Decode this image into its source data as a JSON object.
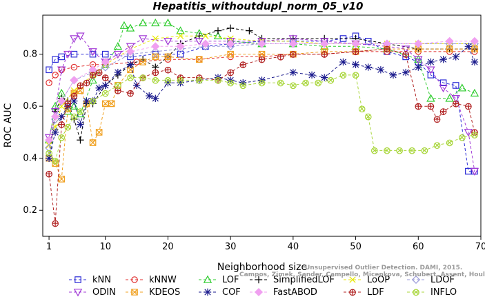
{
  "chart_data": {
    "type": "line",
    "title": "Hepatitis_withoutdupl_norm_05_v10",
    "xlabel": "Neighborhood size",
    "ylabel": "ROC AUC",
    "xlim": [
      0,
      70
    ],
    "ylim": [
      0.1,
      0.95
    ],
    "xticks": [
      1,
      10,
      20,
      30,
      40,
      50,
      60,
      70
    ],
    "yticks": [
      0.2,
      0.4,
      0.6,
      0.8
    ],
    "xtick_labels": [
      "1",
      "10",
      "20",
      "30",
      "40",
      "50",
      "60",
      "70"
    ],
    "ytick_labels": [
      "0.2",
      "0.4",
      "0.6",
      "0.8"
    ],
    "grid": false,
    "legend_position": "bottom",
    "watermark_lines": [
      "Unsupervised Outlier Detection. DAMI, 2015.",
      "Campos, Zimek, Sander, Campello, Micenkova, Schubert, Assent, Houle"
    ],
    "series": [
      {
        "name": "kNN",
        "color": "#2b2bd6",
        "marker": "square",
        "x": [
          1,
          2,
          3,
          5,
          8,
          10,
          14,
          18,
          22,
          26,
          30,
          35,
          40,
          45,
          48,
          50,
          52,
          55,
          58,
          60,
          62,
          64,
          66,
          68,
          69
        ],
        "y": [
          0.74,
          0.78,
          0.79,
          0.8,
          0.8,
          0.8,
          0.79,
          0.8,
          0.8,
          0.83,
          0.84,
          0.85,
          0.85,
          0.85,
          0.86,
          0.87,
          0.85,
          0.81,
          0.79,
          0.77,
          0.72,
          0.69,
          0.68,
          0.35,
          0.35
        ]
      },
      {
        "name": "kNNW",
        "color": "#e03030",
        "marker": "circle",
        "x": [
          1,
          2,
          3,
          5,
          8,
          10,
          15,
          20,
          25,
          30,
          35,
          40,
          45,
          50,
          55,
          60,
          65,
          69
        ],
        "y": [
          0.69,
          0.72,
          0.74,
          0.75,
          0.76,
          0.76,
          0.77,
          0.78,
          0.78,
          0.79,
          0.79,
          0.8,
          0.8,
          0.81,
          0.81,
          0.81,
          0.81,
          0.81
        ]
      },
      {
        "name": "LOF",
        "color": "#2ecc2e",
        "marker": "triangle-up",
        "x": [
          1,
          2,
          3,
          4,
          5,
          6,
          8,
          10,
          12,
          13,
          14,
          16,
          18,
          20,
          22,
          25,
          28,
          30,
          35,
          40,
          45,
          50,
          55,
          60,
          62,
          65,
          67,
          69
        ],
        "y": [
          0.47,
          0.6,
          0.65,
          0.58,
          0.6,
          0.57,
          0.7,
          0.76,
          0.83,
          0.91,
          0.9,
          0.92,
          0.92,
          0.92,
          0.89,
          0.88,
          0.87,
          0.85,
          0.84,
          0.84,
          0.83,
          0.83,
          0.82,
          0.78,
          0.63,
          0.63,
          0.67,
          0.65
        ]
      },
      {
        "name": "SimplifiedLOF",
        "color": "#000000",
        "marker": "plus",
        "x": [
          1,
          2,
          3,
          4,
          5,
          6,
          7,
          8,
          10,
          12,
          14,
          16,
          18,
          20,
          22,
          25,
          28,
          30,
          33,
          35,
          40,
          45,
          50,
          55,
          60,
          65,
          69
        ],
        "y": [
          0.4,
          0.58,
          0.63,
          0.62,
          0.55,
          0.47,
          0.61,
          0.61,
          0.68,
          0.72,
          0.76,
          0.78,
          0.75,
          0.79,
          0.84,
          0.87,
          0.89,
          0.9,
          0.89,
          0.86,
          0.86,
          0.86,
          0.86,
          0.84,
          0.82,
          0.82,
          0.82
        ]
      },
      {
        "name": "LoOP",
        "color": "#e8e800",
        "marker": "x",
        "x": [
          1,
          2,
          3,
          5,
          8,
          10,
          14,
          18,
          22,
          26,
          30,
          35,
          40,
          45,
          50,
          55,
          60,
          65,
          69
        ],
        "y": [
          0.45,
          0.52,
          0.6,
          0.66,
          0.72,
          0.76,
          0.82,
          0.86,
          0.87,
          0.87,
          0.86,
          0.85,
          0.85,
          0.84,
          0.84,
          0.84,
          0.84,
          0.84,
          0.84
        ]
      },
      {
        "name": "LDOF",
        "color": "#9a9ad8",
        "marker": "diamond",
        "x": [
          1,
          2,
          3,
          5,
          8,
          10,
          14,
          18,
          22,
          26,
          30,
          35,
          40,
          45,
          50,
          55,
          60,
          65,
          69
        ],
        "y": [
          0.44,
          0.55,
          0.62,
          0.7,
          0.73,
          0.75,
          0.8,
          0.81,
          0.82,
          0.83,
          0.83,
          0.84,
          0.84,
          0.84,
          0.84,
          0.84,
          0.84,
          0.84,
          0.84
        ]
      },
      {
        "name": "ODIN",
        "color": "#a23ad6",
        "marker": "triangle-down",
        "x": [
          1,
          2,
          3,
          4,
          5,
          6,
          8,
          10,
          12,
          14,
          16,
          20,
          25,
          30,
          35,
          40,
          45,
          50,
          55,
          58,
          60,
          62,
          64,
          66,
          68,
          69
        ],
        "y": [
          0.48,
          0.58,
          0.74,
          0.8,
          0.86,
          0.87,
          0.81,
          0.77,
          0.8,
          0.83,
          0.86,
          0.85,
          0.85,
          0.85,
          0.85,
          0.86,
          0.85,
          0.84,
          0.83,
          0.82,
          0.78,
          0.74,
          0.67,
          0.63,
          0.5,
          0.35
        ]
      },
      {
        "name": "KDEOS",
        "color": "#f0a020",
        "marker": "box-x",
        "x": [
          1,
          2,
          3,
          4,
          5,
          6,
          7,
          8,
          9,
          10,
          11,
          12,
          14,
          16,
          18,
          20,
          25,
          30,
          35,
          40,
          45,
          50,
          55,
          60,
          65,
          69
        ],
        "y": [
          0.4,
          0.38,
          0.32,
          0.59,
          0.65,
          0.66,
          0.61,
          0.46,
          0.5,
          0.61,
          0.61,
          0.68,
          0.74,
          0.77,
          0.79,
          0.79,
          0.78,
          0.8,
          0.8,
          0.8,
          0.81,
          0.81,
          0.82,
          0.82,
          0.82,
          0.82
        ]
      },
      {
        "name": "COF",
        "color": "#1a1a8c",
        "marker": "asterisk",
        "x": [
          1,
          2,
          3,
          4,
          5,
          6,
          7,
          8,
          9,
          10,
          12,
          14,
          15,
          17,
          18,
          20,
          22,
          25,
          28,
          30,
          32,
          35,
          40,
          43,
          45,
          48,
          50,
          52,
          54,
          56,
          58,
          60,
          62,
          64,
          66,
          68,
          69
        ],
        "y": [
          0.4,
          0.5,
          0.56,
          0.6,
          0.62,
          0.53,
          0.62,
          0.62,
          0.67,
          0.68,
          0.73,
          0.76,
          0.68,
          0.64,
          0.63,
          0.69,
          0.69,
          0.7,
          0.71,
          0.7,
          0.69,
          0.7,
          0.73,
          0.72,
          0.71,
          0.77,
          0.76,
          0.75,
          0.74,
          0.72,
          0.73,
          0.75,
          0.77,
          0.78,
          0.79,
          0.83,
          0.77
        ]
      },
      {
        "name": "FastABOD",
        "color": "#f0a0f0",
        "marker": "diamond-filled",
        "x": [
          1,
          2,
          3,
          5,
          8,
          10,
          14,
          18,
          22,
          26,
          30,
          35,
          40,
          45,
          50,
          55,
          60,
          65,
          69
        ],
        "y": [
          0.47,
          0.56,
          0.62,
          0.7,
          0.74,
          0.77,
          0.81,
          0.83,
          0.83,
          0.84,
          0.84,
          0.84,
          0.84,
          0.84,
          0.84,
          0.84,
          0.84,
          0.85,
          0.85
        ]
      },
      {
        "name": "LDF",
        "color": "#b02020",
        "marker": "circle-plus",
        "x": [
          1,
          2,
          3,
          4,
          5,
          6,
          7,
          8,
          9,
          10,
          12,
          14,
          16,
          18,
          20,
          22,
          25,
          28,
          30,
          32,
          35,
          38,
          40,
          45,
          50,
          55,
          58,
          60,
          62,
          63,
          64,
          66,
          68,
          69
        ],
        "y": [
          0.34,
          0.15,
          0.53,
          0.61,
          0.64,
          0.68,
          0.69,
          0.72,
          0.73,
          0.71,
          0.66,
          0.65,
          0.71,
          0.73,
          0.74,
          0.71,
          0.71,
          0.7,
          0.73,
          0.76,
          0.78,
          0.79,
          0.8,
          0.8,
          0.81,
          0.82,
          0.8,
          0.6,
          0.6,
          0.55,
          0.58,
          0.61,
          0.6,
          0.5
        ]
      },
      {
        "name": "INFLO",
        "color": "#a8d63a",
        "marker": "circle-x",
        "x": [
          1,
          2,
          3,
          4,
          5,
          6,
          8,
          10,
          12,
          14,
          16,
          18,
          20,
          22,
          25,
          28,
          30,
          32,
          35,
          38,
          40,
          42,
          44,
          46,
          48,
          50,
          51,
          52,
          53,
          55,
          57,
          59,
          61,
          63,
          65,
          67,
          69
        ],
        "y": [
          0.42,
          0.39,
          0.48,
          0.52,
          0.56,
          0.58,
          0.62,
          0.65,
          0.68,
          0.71,
          0.71,
          0.7,
          0.7,
          0.7,
          0.7,
          0.7,
          0.69,
          0.68,
          0.69,
          0.69,
          0.68,
          0.69,
          0.69,
          0.7,
          0.72,
          0.72,
          0.59,
          0.56,
          0.43,
          0.43,
          0.43,
          0.43,
          0.43,
          0.45,
          0.46,
          0.48,
          0.49
        ]
      }
    ]
  }
}
